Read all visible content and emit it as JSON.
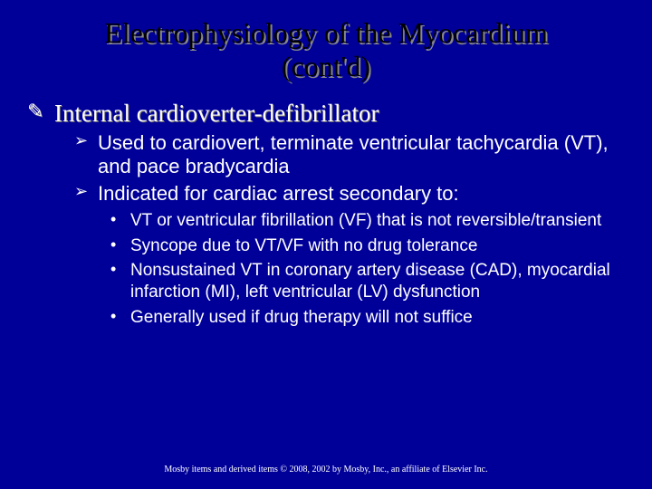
{
  "colors": {
    "background": "#000099",
    "title_color": "#000000",
    "title_shadow": "#888888",
    "body_color": "#ffffff"
  },
  "title": {
    "line1": "Electrophysiology of the Myocardium",
    "line2": "(cont'd)"
  },
  "lvl1": {
    "bullet": "✎",
    "items": [
      {
        "text": "Internal cardioverter-defibrillator"
      }
    ]
  },
  "lvl2": {
    "bullet": "➢",
    "items": [
      {
        "text": "Used to cardiovert, terminate ventricular tachycardia (VT), and pace bradycardia"
      },
      {
        "text": "Indicated for cardiac arrest secondary to:"
      }
    ]
  },
  "lvl3": {
    "bullet": "•",
    "items": [
      {
        "text": "VT or ventricular fibrillation (VF) that is not reversible/transient"
      },
      {
        "text": "Syncope due to VT/VF with no drug tolerance"
      },
      {
        "text": "Nonsustained VT in coronary artery disease (CAD), myocardial infarction (MI), left ventricular (LV) dysfunction"
      },
      {
        "text": "Generally used if drug therapy will not suffice"
      }
    ]
  },
  "footer": "Mosby items and derived items © 2008, 2002 by Mosby, Inc., an affiliate of Elsevier Inc."
}
